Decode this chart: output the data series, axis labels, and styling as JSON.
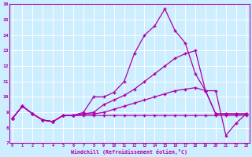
{
  "title": "",
  "xlabel": "Windchill (Refroidissement éolien,°C)",
  "background_color": "#cceeff",
  "grid_color": "#ffffff",
  "line_color": "#aa00aa",
  "xmin": 0,
  "xmax": 23,
  "ymin": 7,
  "ymax": 16,
  "series": {
    "line1_flat": [
      8.6,
      9.4,
      8.9,
      8.5,
      8.4,
      8.8,
      8.8,
      8.8,
      8.8,
      8.8,
      8.8,
      8.8,
      8.8,
      8.8,
      8.8,
      8.8,
      8.8,
      8.8,
      8.8,
      8.8,
      8.8,
      8.8,
      8.8,
      8.8
    ],
    "line2_spike": [
      8.6,
      9.4,
      8.9,
      8.5,
      8.4,
      8.8,
      8.8,
      9.0,
      10.0,
      10.0,
      10.3,
      11.0,
      12.8,
      14.0,
      14.6,
      15.7,
      14.3,
      13.5,
      11.5,
      10.4,
      10.4,
      7.5,
      8.3,
      8.9
    ],
    "line3_med": [
      8.6,
      9.4,
      8.9,
      8.5,
      8.4,
      8.8,
      8.8,
      8.9,
      9.0,
      9.5,
      9.8,
      10.1,
      10.5,
      11.0,
      11.5,
      12.0,
      12.5,
      12.8,
      13.0,
      10.4,
      8.9,
      8.9,
      8.9,
      8.9
    ],
    "line4_grad": [
      8.6,
      9.4,
      8.9,
      8.5,
      8.4,
      8.8,
      8.8,
      8.9,
      8.9,
      9.0,
      9.2,
      9.4,
      9.6,
      9.8,
      10.0,
      10.2,
      10.4,
      10.5,
      10.6,
      10.4,
      8.9,
      8.9,
      8.9,
      8.9
    ]
  },
  "yticks": [
    7,
    8,
    9,
    10,
    11,
    12,
    13,
    14,
    15,
    16
  ],
  "xticks": [
    0,
    1,
    2,
    3,
    4,
    5,
    6,
    7,
    8,
    9,
    10,
    11,
    12,
    13,
    14,
    15,
    16,
    17,
    18,
    19,
    20,
    21,
    22,
    23
  ]
}
